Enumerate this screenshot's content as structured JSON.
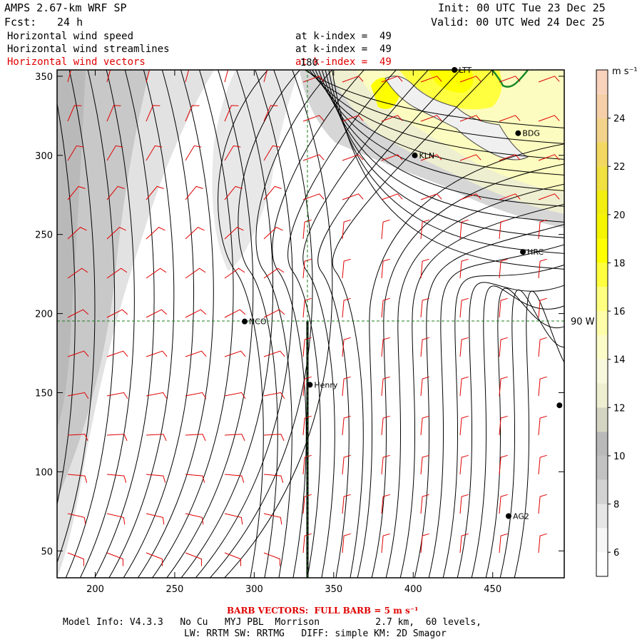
{
  "header": {
    "model": "AMPS 2.67-km WRF SP",
    "fcst_label": "Fcst:",
    "fcst_value": "24 h",
    "init": "Init: 00 UTC Tue 23 Dec 25",
    "valid": "Valid: 00 UTC Wed 24 Dec 25",
    "fields": [
      {
        "name": "Horizontal wind speed",
        "level": "at k-index =  49",
        "color": "#000000"
      },
      {
        "name": "Horizontal wind streamlines",
        "level": "at k-index =  49",
        "color": "#000000"
      },
      {
        "name": "Horizontal wind vectors",
        "level": "at k-index =  49",
        "color": "#e00000"
      }
    ]
  },
  "colorbar": {
    "unit": "m s⁻¹",
    "levels": [
      5,
      6,
      7,
      8,
      9,
      10,
      11,
      12,
      13,
      14,
      15,
      16,
      17,
      18,
      19,
      20,
      21,
      22,
      23,
      24,
      25,
      26
    ],
    "colors": [
      "#ffffff",
      "#f7f7f7",
      "#e6e6e6",
      "#d2d2d2",
      "#c2c2c2",
      "#b9b9b9",
      "#d4d4c2",
      "#eeeed0",
      "#f8f8dc",
      "#fcfcc8",
      "#fefeaa",
      "#ffff80",
      "#ffff40",
      "#ffff00",
      "#f5f500",
      "#f2ee10",
      "#f0e040",
      "#f2d860",
      "#f3d28c",
      "#f6cfa8",
      "#f9d2bc"
    ],
    "tick_labels": [
      "6",
      "8",
      "10",
      "12",
      "14",
      "16",
      "18",
      "20",
      "22",
      "24"
    ]
  },
  "chart_data": {
    "type": "contour",
    "xlim": [
      176,
      495
    ],
    "ylim": [
      33,
      354
    ],
    "xticks": [
      200,
      250,
      300,
      350,
      400,
      450
    ],
    "yticks": [
      50,
      100,
      150,
      200,
      250,
      300,
      350
    ],
    "lon_line_label": "180",
    "lat_line_label": "90 W",
    "stations": [
      {
        "name": "NCO",
        "x": 294,
        "y": 195
      },
      {
        "name": "Henry",
        "x": 335,
        "y": 155
      },
      {
        "name": "KLN",
        "x": 401,
        "y": 300
      },
      {
        "name": "BDG",
        "x": 466,
        "y": 314
      },
      {
        "name": "HRC",
        "x": 469,
        "y": 239
      },
      {
        "name": "AG2",
        "x": 460,
        "y": 72
      },
      {
        "name": "LTT",
        "x": 426,
        "y": 354
      },
      {
        "name": "",
        "x": 492,
        "y": 142
      }
    ]
  },
  "footer": {
    "barb_note": "BARB VECTORS:  FULL BARB = 5 m s⁻¹",
    "model_info": "Model Info: V4.3.3   No Cu   MYJ PBL  Morrison          2.7 km,  60 levels,",
    "physics": "LW: RRTM SW: RRTMG   DIFF: simple KM: 2D Smagor"
  }
}
